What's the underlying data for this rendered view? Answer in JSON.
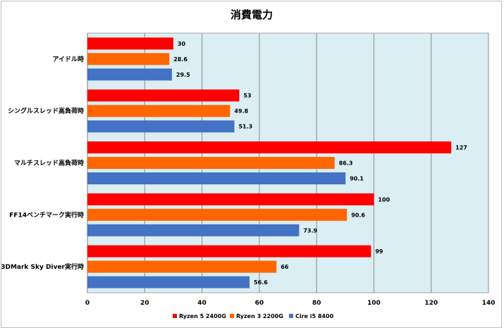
{
  "chart_data": {
    "type": "bar",
    "orientation": "horizontal",
    "title": "消費電力",
    "categories": [
      "アイドル時",
      "シングルスレッド高負荷時",
      "マルチスレッド高負荷時",
      "FF14ベンチマーク実行時",
      "3DMark Sky Diver実行時"
    ],
    "series": [
      {
        "name": "Ryzen 5 2400G",
        "color": "#ff0000",
        "values": [
          30,
          53,
          127,
          100,
          99
        ],
        "labels": [
          "30",
          "53",
          "127",
          "100",
          "99"
        ]
      },
      {
        "name": "Ryzen 3 2200G",
        "color": "#ff6600",
        "values": [
          28.6,
          49.8,
          86.3,
          90.6,
          66
        ],
        "labels": [
          "28.6",
          "49.8",
          "86.3",
          "90.6",
          "66"
        ]
      },
      {
        "name": "Cire i5 8400",
        "color": "#4472c4",
        "values": [
          29.5,
          51.3,
          90.1,
          73.9,
          56.6
        ],
        "labels": [
          "29.5",
          "51.3",
          "90.1",
          "73.9",
          "56.6"
        ]
      }
    ],
    "xlim": [
      0,
      140
    ],
    "xticks": [
      "0",
      "20",
      "40",
      "60",
      "80",
      "100",
      "120",
      "140"
    ],
    "grid": true,
    "plot_background": "#daeef3",
    "legend_position": "bottom"
  }
}
